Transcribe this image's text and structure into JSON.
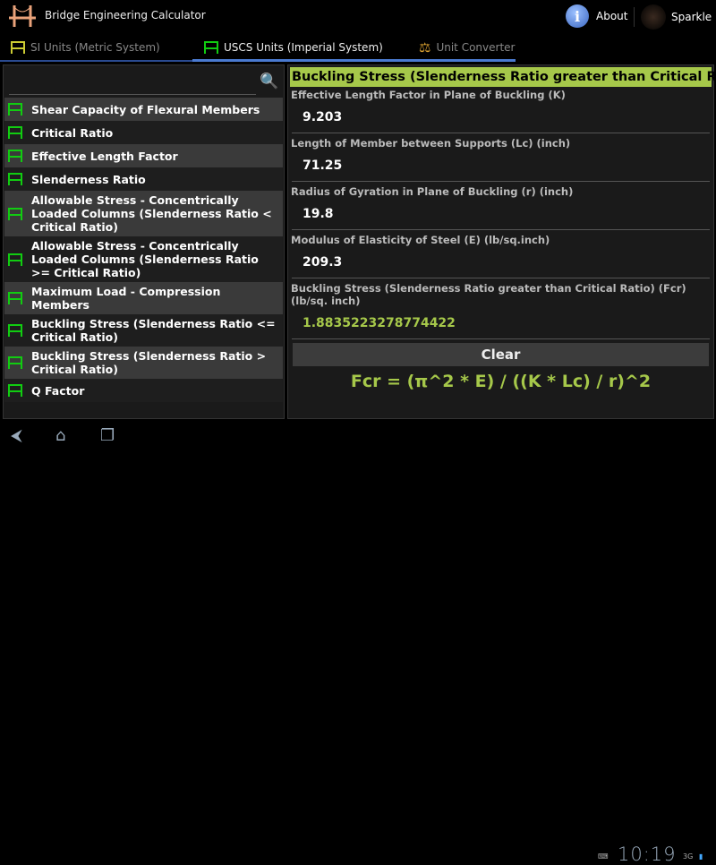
{
  "app": {
    "title": "Bridge Engineering Calculator",
    "about": "About",
    "sparkle": "Sparkle"
  },
  "tabs": [
    {
      "label": "SI Units (Metric System)"
    },
    {
      "label": "USCS Units (Imperial System)",
      "active": true
    },
    {
      "label": "Unit Converter"
    }
  ],
  "search": {
    "placeholder": "",
    "value": ""
  },
  "list": [
    "Shear Capacity of Flexural Members",
    "Critical Ratio",
    "Effective Length Factor",
    "Slenderness Ratio",
    "Allowable Stress - Concentrically Loaded Columns (Slenderness Ratio < Critical Ratio)",
    "Allowable Stress - Concentrically Loaded Columns (Slenderness Ratio >= Critical Ratio)",
    "Maximum Load - Compression Members",
    "Buckling Stress (Slenderness Ratio <= Critical Ratio)",
    "Buckling Stress (Slenderness Ratio > Critical Ratio)",
    "Q Factor"
  ],
  "panel": {
    "heading": "Buckling Stress (Slenderness Ratio greater than Critical Ratio)",
    "fields": [
      {
        "label": "Effective Length Factor in Plane of Buckling (K)",
        "value": "9.203"
      },
      {
        "label": "Length of Member between Supports (Lc) (inch)",
        "value": "71.25"
      },
      {
        "label": "Radius of Gyration in Plane of Buckling (r) (inch)",
        "value": "19.8"
      },
      {
        "label": "Modulus of Elasticity of Steel (E) (lb/sq.inch)",
        "value": "209.3"
      }
    ],
    "result_label": "Buckling Stress (Slenderness Ratio greater than Critical Ratio) (Fcr) (lb/sq. inch)",
    "result_value": "1.8835223278774422",
    "clear": "Clear",
    "formula": "Fcr = (π^2 * E) / ((K * Lc) / r)^2"
  },
  "status": {
    "time": "10:19",
    "network": "3G"
  },
  "colors": {
    "accent": "#a6c84a",
    "tab_indicator": "#4a7ad0",
    "list_icon": "#11cc11"
  }
}
